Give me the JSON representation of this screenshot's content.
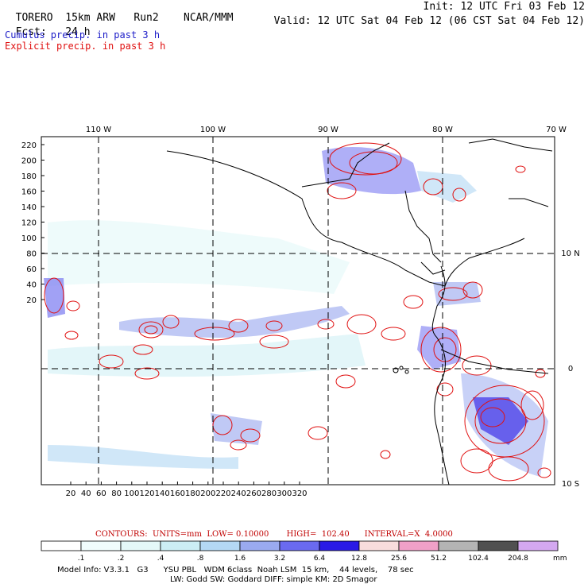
{
  "header": {
    "model": "TORERO",
    "resolution": "15km ARW",
    "run": "Run2",
    "org": "NCAR/MMM",
    "init": "Init: 12 UTC Fri 03 Feb 12",
    "fcst_label": "Fcst:",
    "fcst_value": "24 h",
    "valid": "Valid: 12 UTC Sat 04 Feb 12 (06 CST Sat 04 Feb 12)"
  },
  "fields": {
    "cumulus": "Cumulus precip. in past 3 h",
    "explicit": "Explicit precip. in past 3 h"
  },
  "map": {
    "lon_labels": [
      "110 W",
      "100 W",
      "90 W",
      "80 W",
      "70 W"
    ],
    "lat_labels": [
      "10 N",
      "0",
      "10 S"
    ],
    "y_ticks": [
      "220",
      "200",
      "180",
      "160",
      "140",
      "120",
      "100",
      "80",
      "60",
      "40",
      "20"
    ],
    "x_ticks": [
      "20",
      "40",
      "60",
      "80",
      "100",
      "120",
      "140",
      "160",
      "180",
      "200",
      "220",
      "240",
      "260",
      "280",
      "300",
      "320"
    ]
  },
  "contour_info": "CONTOURS:  UNITS=mm  LOW= 0.10000       HIGH=  102.40      INTERVAL=X  4.0000",
  "colorbar": {
    "labels": [
      ".1",
      ".2",
      ".4",
      ".8",
      "1.6",
      "3.2",
      "6.4",
      "12.8",
      "25.6",
      "51.2",
      "102.4",
      "204.8"
    ],
    "unit": "mm",
    "colors": [
      "#ffffff",
      "#f0fcfc",
      "#e4f8f8",
      "#cceef4",
      "#b4d8f4",
      "#9aaaf0",
      "#6a6af0",
      "#2a1ae6",
      "#f8dcdc",
      "#f0a0c8",
      "#b4b4b4",
      "#505050",
      "#d4a8f0"
    ]
  },
  "model_info": {
    "line1": "Model Info: V3.3.1   G3      YSU PBL   WDM 6class  Noah LSM  15 km,    44 levels,    78 sec",
    "line2": "LW: Godd SW: Goddard DIFF: simple KM: 2D Smagor"
  }
}
